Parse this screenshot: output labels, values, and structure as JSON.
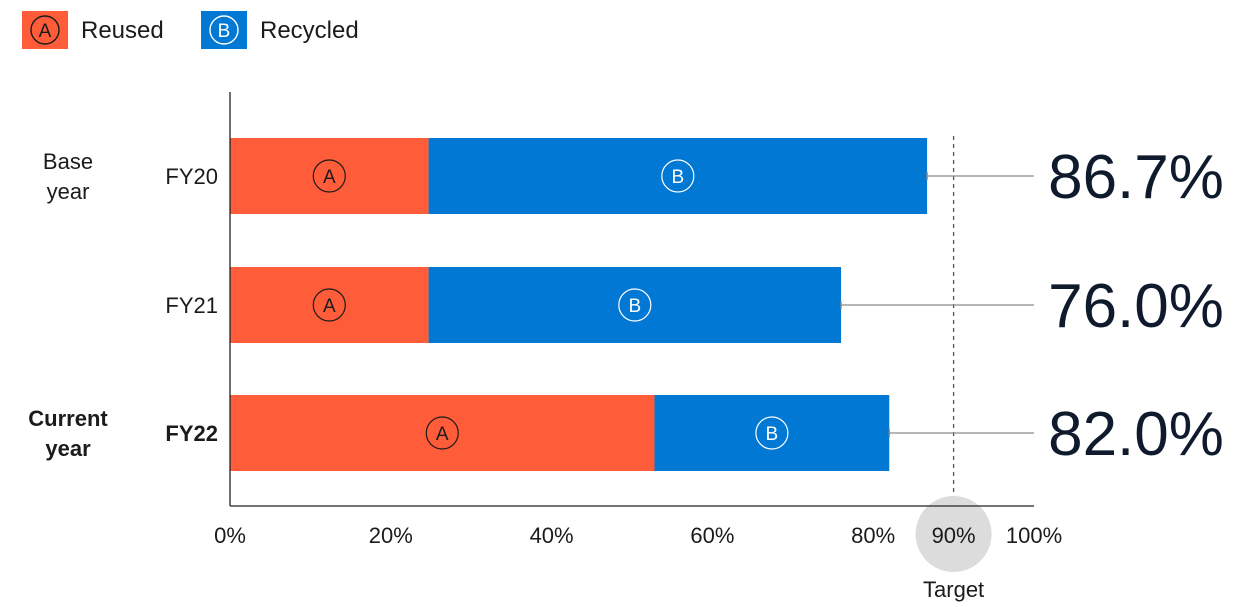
{
  "legend": [
    {
      "badge": "A",
      "label": "Reused",
      "color": "#FF5C39"
    },
    {
      "badge": "B",
      "label": "Recycled",
      "color": "#0078D4"
    }
  ],
  "chart_data": {
    "type": "bar",
    "orientation": "horizontal",
    "stacked": true,
    "categories": [
      "FY20",
      "FY21",
      "FY22"
    ],
    "group_labels": [
      [
        "Base",
        "year"
      ],
      [],
      [
        "Current",
        "year"
      ]
    ],
    "bold_categories": [
      "FY22"
    ],
    "series": [
      {
        "name": "Reused",
        "badge": "A",
        "color": "#FF5C39",
        "values": [
          24.7,
          24.7,
          52.8
        ]
      },
      {
        "name": "Recycled",
        "badge": "B",
        "color": "#0078D4",
        "values": [
          62.0,
          51.3,
          29.2
        ]
      }
    ],
    "totals": [
      "86.7%",
      "76.0%",
      "82.0%"
    ],
    "total_values": [
      86.7,
      76.0,
      82.0
    ],
    "xlim": [
      0,
      100
    ],
    "xticks": [
      "0%",
      "20%",
      "40%",
      "60%",
      "80%",
      "90%",
      "100%"
    ],
    "xtick_values": [
      0,
      20,
      40,
      60,
      80,
      90,
      100
    ],
    "target": {
      "value": 90,
      "tick": "90%",
      "label": "Target",
      "color": "#dcdcdc"
    },
    "grid": false,
    "legend_position": "top-left"
  }
}
